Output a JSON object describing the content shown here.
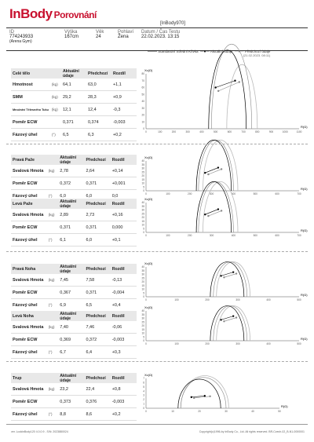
{
  "header": {
    "brand": "InBody",
    "title": "Porovnání",
    "device": "[InBody970]",
    "columns": [
      {
        "label": "ID",
        "value": "774243933",
        "sub": "(Arena Gym)"
      },
      {
        "label": "Výška",
        "value": "167cm"
      },
      {
        "label": "Věk",
        "value": "24"
      },
      {
        "label": "Pohlaví",
        "value": "Žena"
      },
      {
        "label": "Datum / Čas Testu",
        "value": "22.02.2023. 13:15"
      }
    ]
  },
  "legend": {
    "standard": "Standardní Středni Křivka",
    "current": "Aktuální údaje",
    "previous": "Předchozí údaje",
    "previous_date": "(21.02.2023. 08:11)"
  },
  "table_headers": {
    "current": "Aktuální údaje",
    "previous": "Předchozí",
    "diff": "Rozdíl"
  },
  "sections": [
    {
      "title": "Celé tělo",
      "rows": [
        {
          "label": "Hmotnost",
          "unit": "(kg)",
          "cur": "64,1",
          "prev": "63,0",
          "diff": "+1,1"
        },
        {
          "label": "SMM",
          "unit": "(kg)",
          "cur": "29,2",
          "prev": "28,3",
          "diff": "+0,9"
        },
        {
          "label": "Množství Tělesného Tuku",
          "unit": "(kg)",
          "cur": "12,1",
          "prev": "12,4",
          "diff": "-0,3"
        },
        {
          "label": "Poměr ECW",
          "unit": "",
          "cur": "0,371",
          "prev": "0,374",
          "diff": "-0,003"
        },
        {
          "label": "Fázový úhel",
          "unit": "(°)",
          "cur": "6,5",
          "prev": "6,3",
          "diff": "+0,2"
        }
      ]
    },
    {
      "title": "Pravá Paže",
      "rows": [
        {
          "label": "Svalová Hmota",
          "unit": "(kg)",
          "cur": "2,78",
          "prev": "2,64",
          "diff": "+0,14"
        },
        {
          "label": "Poměr ECW",
          "unit": "",
          "cur": "0,372",
          "prev": "0,371",
          "diff": "+0,001"
        },
        {
          "label": "Fázový úhel",
          "unit": "(°)",
          "cur": "6,0",
          "prev": "6,0",
          "diff": "0,0"
        }
      ]
    },
    {
      "title": "Levá Paže",
      "rows": [
        {
          "label": "Svalová Hmota",
          "unit": "(kg)",
          "cur": "2,89",
          "prev": "2,73",
          "diff": "+0,16"
        },
        {
          "label": "Poměr ECW",
          "unit": "",
          "cur": "0,371",
          "prev": "0,371",
          "diff": "0,000"
        },
        {
          "label": "Fázový úhel",
          "unit": "(°)",
          "cur": "6,1",
          "prev": "6,0",
          "diff": "+0,1"
        }
      ]
    },
    {
      "title": "Pravá Noha",
      "rows": [
        {
          "label": "Svalová Hmota",
          "unit": "(kg)",
          "cur": "7,45",
          "prev": "7,58",
          "diff": "-0,13"
        },
        {
          "label": "Poměr ECW",
          "unit": "",
          "cur": "0,367",
          "prev": "0,371",
          "diff": "-0,004"
        },
        {
          "label": "Fázový úhel",
          "unit": "(°)",
          "cur": "6,9",
          "prev": "6,5",
          "diff": "+0,4"
        }
      ]
    },
    {
      "title": "Levá Noha",
      "rows": [
        {
          "label": "Svalová Hmota",
          "unit": "(kg)",
          "cur": "7,40",
          "prev": "7,46",
          "diff": "-0,06"
        },
        {
          "label": "Poměr ECW",
          "unit": "",
          "cur": "0,369",
          "prev": "0,372",
          "diff": "-0,003"
        },
        {
          "label": "Fázový úhel",
          "unit": "(°)",
          "cur": "6,7",
          "prev": "6,4",
          "diff": "+0,3"
        }
      ]
    },
    {
      "title": "Trup",
      "rows": [
        {
          "label": "Svalová Hmota",
          "unit": "(kg)",
          "cur": "23,2",
          "prev": "22,4",
          "diff": "+0,8"
        },
        {
          "label": "Poměr ECW",
          "unit": "",
          "cur": "0,373",
          "prev": "0,376",
          "diff": "-0,003"
        },
        {
          "label": "Fázový úhel",
          "unit": "(°)",
          "cur": "8,8",
          "prev": "8,6",
          "diff": "+0,2"
        }
      ]
    }
  ],
  "chart_data": [
    {
      "type": "line",
      "ylabel": "Xc(Ω)",
      "xlabel": "R(Ω)",
      "x_ticks": [
        "0",
        "100",
        "200",
        "300",
        "400",
        "500",
        "600",
        "700",
        "800",
        "900",
        "1000",
        "1100"
      ],
      "y_ticks": [
        "0",
        "10",
        "20",
        "30",
        "40",
        "50",
        "60",
        "70",
        "80"
      ],
      "xlim": [
        0,
        1100
      ],
      "ylim": [
        0,
        80
      ],
      "curves": {
        "standard": [
          580,
          800
        ],
        "current": [
          450,
          720
        ],
        "previous": [
          470,
          760
        ]
      },
      "points_current": [
        [
          500,
          60
        ],
        [
          640,
          70
        ]
      ],
      "points_previous": [
        [
          520,
          55
        ],
        [
          670,
          68
        ]
      ]
    },
    {
      "type": "line",
      "ylabel": "Xc(Ω)",
      "xlabel": "R(Ω)",
      "x_ticks": [
        "0",
        "100",
        "200",
        "300",
        "400",
        "500",
        "600",
        "700"
      ],
      "y_ticks": [
        "0",
        "5",
        "10",
        "15",
        "20",
        "25",
        "30",
        "35",
        "40"
      ],
      "xlim": [
        0,
        700
      ],
      "ylim": [
        0,
        40
      ],
      "curves": {
        "standard": [
          260,
          420
        ],
        "current": [
          230,
          390
        ],
        "previous": [
          240,
          400
        ]
      },
      "points_current": [
        [
          270,
          24
        ],
        [
          330,
          31
        ]
      ],
      "points_previous": [
        [
          285,
          22
        ],
        [
          345,
          29
        ]
      ]
    },
    {
      "type": "line",
      "ylabel": "Xc(Ω)",
      "xlabel": "R(Ω)",
      "x_ticks": [
        "0",
        "100",
        "200",
        "300",
        "400",
        "500",
        "600",
        "700"
      ],
      "y_ticks": [
        "0",
        "5",
        "10",
        "15",
        "20",
        "25",
        "30",
        "35",
        "40"
      ],
      "xlim": [
        0,
        700
      ],
      "ylim": [
        0,
        40
      ],
      "curves": {
        "standard": [
          260,
          420
        ],
        "current": [
          230,
          390
        ],
        "previous": [
          240,
          400
        ]
      },
      "points_current": [
        [
          270,
          24
        ],
        [
          330,
          31
        ]
      ],
      "points_previous": [
        [
          285,
          22
        ],
        [
          345,
          29
        ]
      ]
    },
    {
      "type": "line",
      "ylabel": "Xc(Ω)",
      "xlabel": "R(Ω)",
      "x_ticks": [
        "0",
        "100",
        "200",
        "300",
        "400",
        "500"
      ],
      "y_ticks": [
        "0",
        "5",
        "10",
        "15",
        "20",
        "25",
        "30",
        "35",
        "40"
      ],
      "xlim": [
        0,
        500
      ],
      "ylim": [
        0,
        40
      ],
      "curves": {
        "standard": [
          230,
          340
        ],
        "current": [
          210,
          320
        ],
        "previous": [
          220,
          330
        ]
      },
      "points_current": [
        [
          245,
          28
        ],
        [
          285,
          33
        ]
      ],
      "points_previous": [
        [
          255,
          26
        ],
        [
          295,
          31
        ]
      ]
    },
    {
      "type": "line",
      "ylabel": "Xc(Ω)",
      "xlabel": "R(Ω)",
      "x_ticks": [
        "0",
        "100",
        "200",
        "300",
        "400",
        "500"
      ],
      "y_ticks": [
        "0",
        "5",
        "10",
        "15",
        "20",
        "25",
        "30",
        "35",
        "40"
      ],
      "xlim": [
        0,
        500
      ],
      "ylim": [
        0,
        40
      ],
      "curves": {
        "standard": [
          230,
          340
        ],
        "current": [
          210,
          320
        ],
        "previous": [
          220,
          330
        ]
      },
      "points_current": [
        [
          245,
          28
        ],
        [
          285,
          33
        ]
      ],
      "points_previous": [
        [
          255,
          26
        ],
        [
          295,
          31
        ]
      ]
    },
    {
      "type": "line",
      "ylabel": "Xc(Ω)",
      "xlabel": "R(Ω)",
      "x_ticks": [
        "0",
        "10",
        "20",
        "30",
        "40",
        "50"
      ],
      "y_ticks": [
        "0",
        "1",
        "2",
        "3",
        "4",
        "5",
        "6",
        "7"
      ],
      "xlim": [
        0,
        50
      ],
      "ylim": [
        0,
        7
      ],
      "curves": {
        "standard": [
          13,
          31
        ],
        "current": [
          12,
          28
        ],
        "previous": [
          13,
          30
        ]
      },
      "points_current": [
        [
          17,
          2.6
        ],
        [
          22,
          2.9
        ]
      ],
      "points_previous": [
        [
          18,
          2.4
        ],
        [
          24,
          2.8
        ]
      ]
    }
  ],
  "footer": {
    "left": "ver. LookinBody120 4.0.0.9 - S/N: 2023880024",
    "right": "Copyright(c)1996-by InBody Co., Ltd. All rights reserved. BR-Czech-02_B-N1-0000001"
  }
}
